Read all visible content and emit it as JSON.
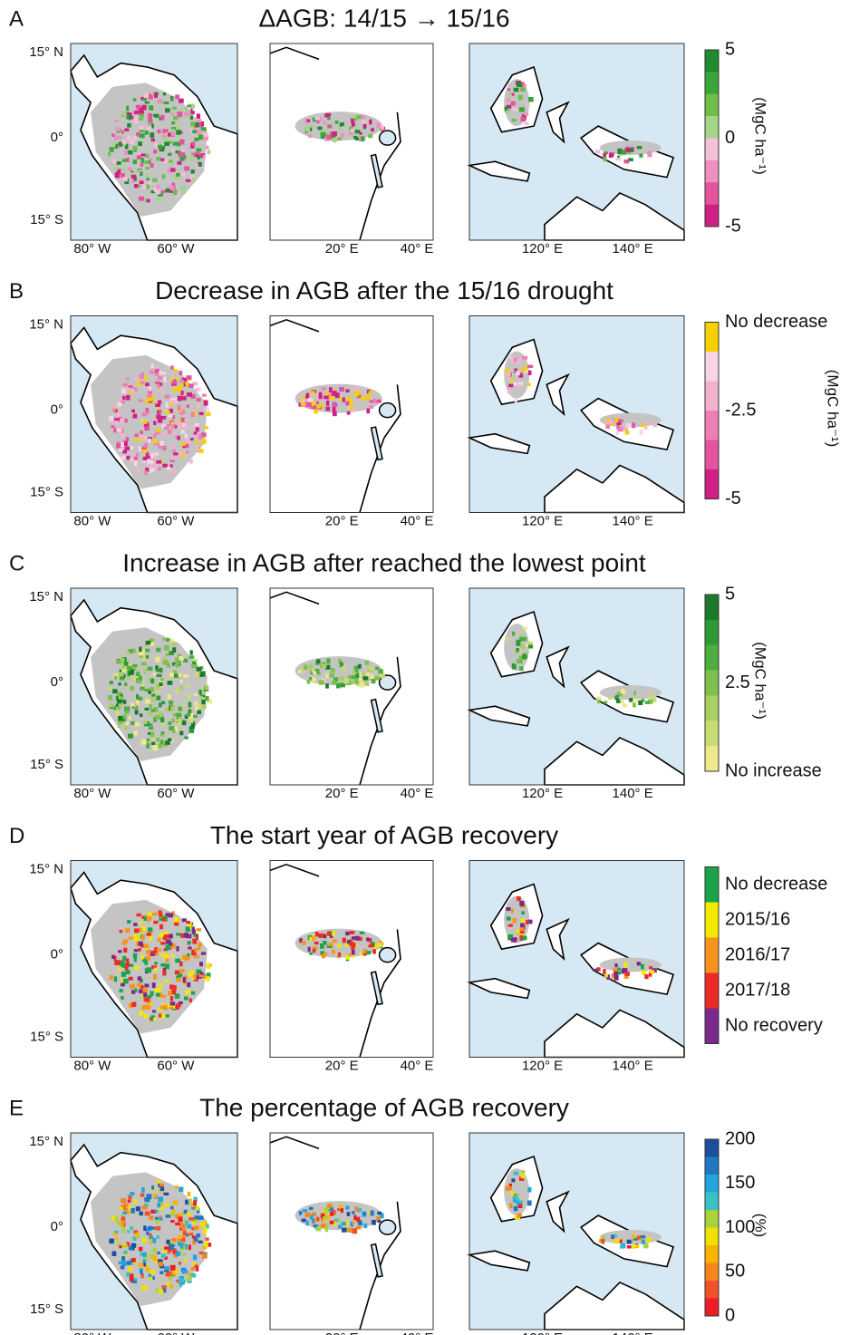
{
  "panels": [
    {
      "letter": "A",
      "title": "ΔAGB: 14/15 → 15/16",
      "colorbar": {
        "labels": [
          "5",
          "0",
          "-5"
        ],
        "unit": "(MgC ha⁻¹)",
        "colors": [
          "#1f8a2e",
          "#3aa53a",
          "#6fbf4a",
          "#a6d48a",
          "#f4c0d8",
          "#ee8fbf",
          "#e4539e",
          "#d21f83"
        ]
      }
    },
    {
      "letter": "B",
      "title": "Decrease in AGB after the 15/16 drought",
      "colorbar": {
        "labels": [
          "No decrease",
          "-2.5",
          "-5"
        ],
        "unit": "(MgC ha⁻¹)",
        "colors": [
          "#f7d000",
          "#f8d5e6",
          "#f3b2cf",
          "#ec7fb4",
          "#e4539e",
          "#d21f83"
        ]
      }
    },
    {
      "letter": "C",
      "title": "Increase in AGB after reached the lowest point",
      "colorbar": {
        "labels": [
          "5",
          "2.5",
          "No increase"
        ],
        "unit": "(MgC ha⁻¹)",
        "colors": [
          "#1a7a2a",
          "#2e9a34",
          "#4cae3e",
          "#7cc04e",
          "#a8cf62",
          "#c9dc72",
          "#eee98a"
        ]
      }
    },
    {
      "letter": "D",
      "title": "The start year of AGB recovery",
      "colorbar": {
        "labels": [
          "No decrease",
          "2015/16",
          "2016/17",
          "2017/18",
          "No recovery"
        ],
        "colors": [
          "#1aa54a",
          "#f2e800",
          "#f7941d",
          "#ee2a24",
          "#7b2a8c"
        ]
      }
    },
    {
      "letter": "E",
      "title": "The percentage of AGB recovery",
      "colorbar": {
        "labels": [
          "200",
          "150",
          "100",
          "50",
          "0"
        ],
        "unit": "(%)",
        "colors": [
          "#1b4f9c",
          "#1f78c1",
          "#22a4dc",
          "#3cc0c8",
          "#a6d43a",
          "#f2e000",
          "#f8b400",
          "#f7851e",
          "#f0502a",
          "#ee1c24"
        ]
      }
    }
  ],
  "lat_labels": [
    "15° N",
    "0°",
    "15° S"
  ],
  "lon_labels": [
    [
      "80° W",
      "60° W"
    ],
    [
      "20° E",
      "40° E"
    ],
    [
      "120° E",
      "140° E"
    ]
  ]
}
